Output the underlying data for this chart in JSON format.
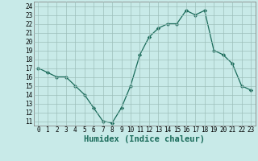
{
  "x": [
    0,
    1,
    2,
    3,
    4,
    5,
    6,
    7,
    8,
    9,
    10,
    11,
    12,
    13,
    14,
    15,
    16,
    17,
    18,
    19,
    20,
    21,
    22,
    23
  ],
  "y": [
    17,
    16.5,
    16,
    16,
    15,
    14,
    12.5,
    11,
    10.8,
    12.5,
    15,
    18.5,
    20.5,
    21.5,
    22,
    22,
    23.5,
    23,
    23.5,
    19,
    18.5,
    17.5,
    15,
    14.5
  ],
  "line_color": "#1a6b5a",
  "marker": "D",
  "marker_size": 2.2,
  "bg_color": "#c8eae8",
  "grid_color": "#9dbfbb",
  "xlabel": "Humidex (Indice chaleur)",
  "xlim": [
    -0.5,
    23.5
  ],
  "ylim": [
    10.5,
    24.5
  ],
  "xticks": [
    0,
    1,
    2,
    3,
    4,
    5,
    6,
    7,
    8,
    9,
    10,
    11,
    12,
    13,
    14,
    15,
    16,
    17,
    18,
    19,
    20,
    21,
    22,
    23
  ],
  "yticks": [
    11,
    12,
    13,
    14,
    15,
    16,
    17,
    18,
    19,
    20,
    21,
    22,
    23,
    24
  ],
  "tick_fontsize": 5.5,
  "xlabel_fontsize": 7.5,
  "linewidth": 0.9
}
